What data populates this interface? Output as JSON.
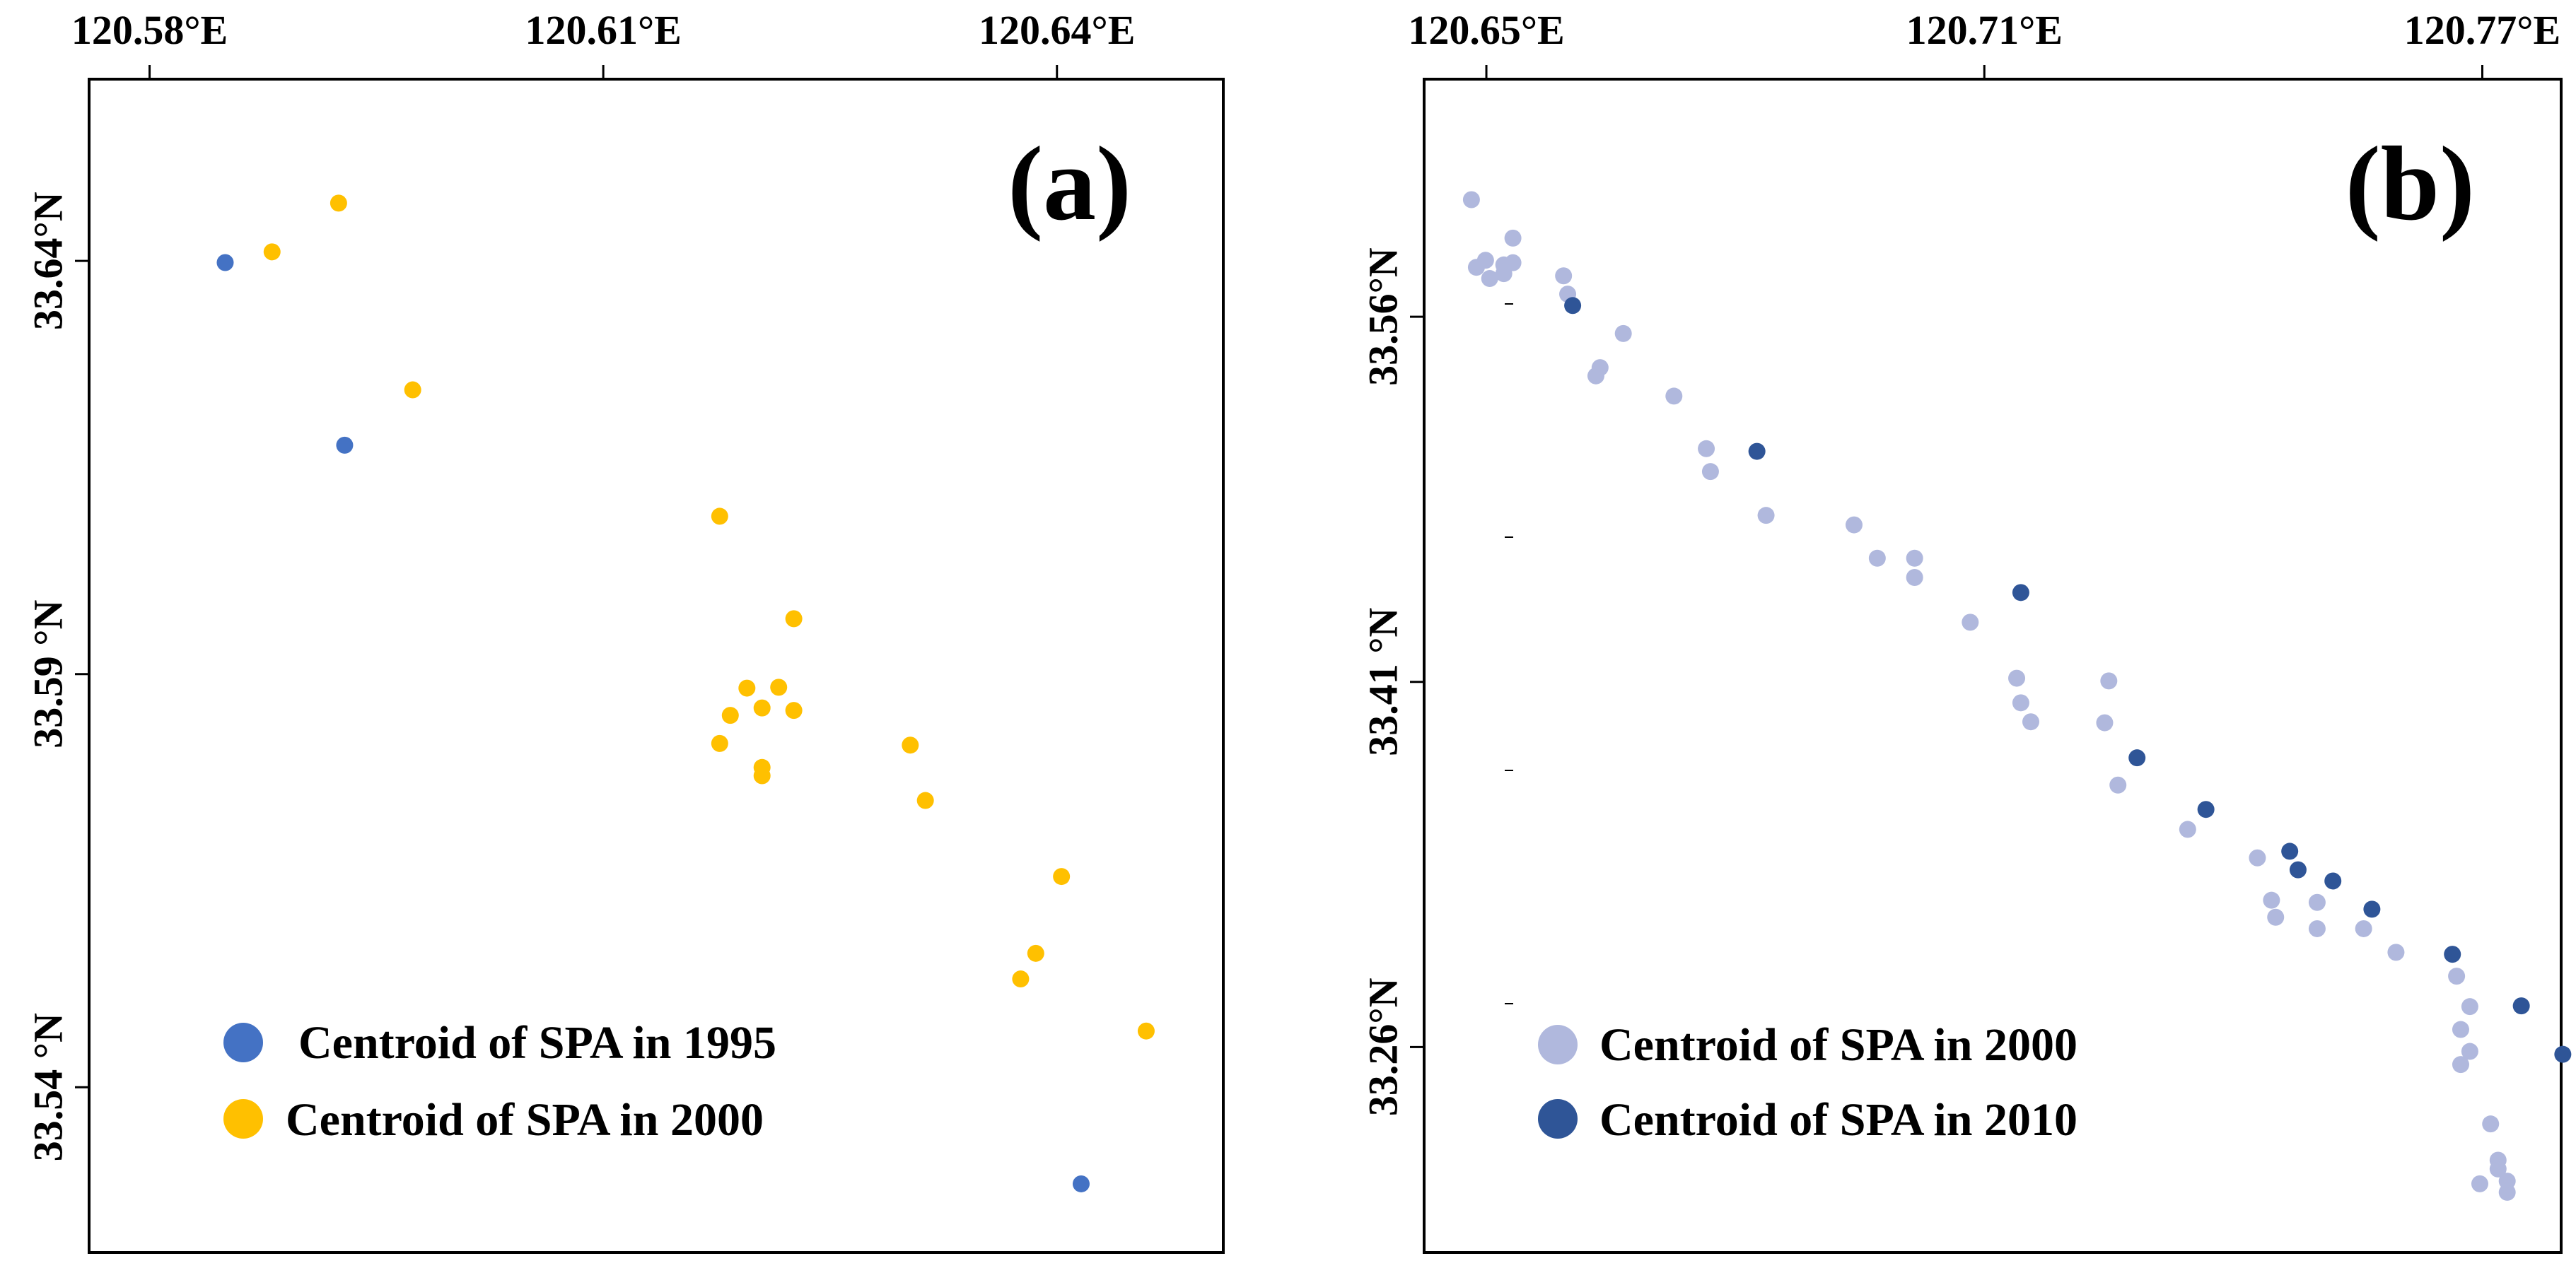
{
  "chart_data": [
    {
      "type": "scatter",
      "panel_label": "(a)",
      "xlim": [
        120.576,
        120.651
      ],
      "ylim": [
        33.52,
        33.662
      ],
      "x_ticks": [
        {
          "value": 120.58,
          "label": "120.58°E"
        },
        {
          "value": 120.61,
          "label": "120.61°E"
        },
        {
          "value": 120.64,
          "label": "120.64°E"
        }
      ],
      "y_ticks": [
        {
          "value": 33.64,
          "label": "33.64°N"
        },
        {
          "value": 33.59,
          "label": "33.59 °N"
        },
        {
          "value": 33.54,
          "label": "33.54 °N"
        }
      ],
      "legend_position": "bottom-left",
      "series": [
        {
          "name": "Centroid of SPA in 1995",
          "color": "#4472C4",
          "points": [
            [
              120.585,
              33.6398
            ],
            [
              120.5929,
              33.6177
            ],
            [
              120.6416,
              33.5283
            ]
          ]
        },
        {
          "name": "Centroid of SPA in 2000",
          "color": "#FFC000",
          "points": [
            [
              120.5881,
              33.6411
            ],
            [
              120.5925,
              33.647
            ],
            [
              120.5974,
              33.6244
            ],
            [
              120.6177,
              33.6091
            ],
            [
              120.6226,
              33.5967
            ],
            [
              120.6216,
              33.5884
            ],
            [
              120.6195,
              33.5883
            ],
            [
              120.6205,
              33.5859
            ],
            [
              120.6184,
              33.585
            ],
            [
              120.6226,
              33.5856
            ],
            [
              120.6177,
              33.5816
            ],
            [
              120.6205,
              33.5787
            ],
            [
              120.6205,
              33.5777
            ],
            [
              120.6303,
              33.5814
            ],
            [
              120.6313,
              33.5747
            ],
            [
              120.6403,
              33.5655
            ],
            [
              120.6386,
              33.5562
            ],
            [
              120.6376,
              33.5531
            ],
            [
              120.6459,
              33.5468
            ]
          ]
        }
      ]
    },
    {
      "type": "scatter",
      "panel_label": "(b)",
      "xlim": [
        120.6425,
        120.7795
      ],
      "ylim": [
        33.1756,
        33.6576
      ],
      "x_ticks": [
        {
          "value": 120.65,
          "label": "120.65°E"
        },
        {
          "value": 120.71,
          "label": "120.71°E"
        },
        {
          "value": 120.77,
          "label": "120.77°E"
        }
      ],
      "y_ticks": [
        {
          "value": 33.56,
          "label": "33.56°N"
        },
        {
          "value": 33.41,
          "label": "33.41 °N"
        },
        {
          "value": 33.26,
          "label": "33.26°N"
        }
      ],
      "legend_position": "bottom-left",
      "series": [
        {
          "name": "Centroid of SPA in 2000",
          "color": "#B0B8DD",
          "points": [
            [
              120.6482,
              33.6081
            ],
            [
              120.6532,
              33.5923
            ],
            [
              120.6499,
              33.5832
            ],
            [
              120.6532,
              33.5822
            ],
            [
              120.6521,
              33.5813
            ],
            [
              120.6488,
              33.5803
            ],
            [
              120.6521,
              33.5777
            ],
            [
              120.6504,
              33.5757
            ],
            [
              120.6593,
              33.5768
            ],
            [
              120.6598,
              33.5693
            ],
            [
              120.6665,
              33.5531
            ],
            [
              120.6637,
              33.5391
            ],
            [
              120.6632,
              33.5357
            ],
            [
              120.6726,
              33.5274
            ],
            [
              120.6765,
              33.5058
            ],
            [
              120.677,
              33.4964
            ],
            [
              120.6837,
              33.4784
            ],
            [
              120.6943,
              33.4745
            ],
            [
              120.6971,
              33.4608
            ],
            [
              120.7016,
              33.4608
            ],
            [
              120.7016,
              33.4529
            ],
            [
              120.7083,
              33.4345
            ],
            [
              120.7139,
              33.4115
            ],
            [
              120.7144,
              33.4014
            ],
            [
              120.725,
              33.4104
            ],
            [
              120.7156,
              33.3936
            ],
            [
              120.7245,
              33.3932
            ],
            [
              120.7261,
              33.3676
            ],
            [
              120.7345,
              33.3494
            ],
            [
              120.7429,
              33.3377
            ],
            [
              120.7446,
              33.3203
            ],
            [
              120.7501,
              33.3194
            ],
            [
              120.7451,
              33.3133
            ],
            [
              120.7501,
              33.3086
            ],
            [
              120.7557,
              33.3086
            ],
            [
              120.7596,
              33.2989
            ],
            [
              120.7669,
              33.2891
            ],
            [
              120.7685,
              33.2766
            ],
            [
              120.7674,
              33.2672
            ],
            [
              120.7685,
              33.2582
            ],
            [
              120.7674,
              33.2528
            ],
            [
              120.771,
              33.2284
            ],
            [
              120.7719,
              33.2135
            ],
            [
              120.7719,
              33.2099
            ],
            [
              120.7697,
              33.2038
            ],
            [
              120.773,
              33.2049
            ],
            [
              120.773,
              33.2003
            ]
          ]
        },
        {
          "name": "Centroid of SPA in 2010",
          "color": "#2F5597",
          "points": [
            [
              120.6604,
              33.5646
            ],
            [
              120.6826,
              33.5047
            ],
            [
              120.7144,
              33.4467
            ],
            [
              120.7284,
              33.3788
            ],
            [
              120.7367,
              33.3576
            ],
            [
              120.7468,
              33.3404
            ],
            [
              120.7478,
              33.3328
            ],
            [
              120.752,
              33.3282
            ],
            [
              120.7567,
              33.3166
            ],
            [
              120.7664,
              33.2981
            ],
            [
              120.7747,
              33.2769
            ],
            [
              120.7797,
              33.257
            ]
          ]
        }
      ]
    }
  ]
}
